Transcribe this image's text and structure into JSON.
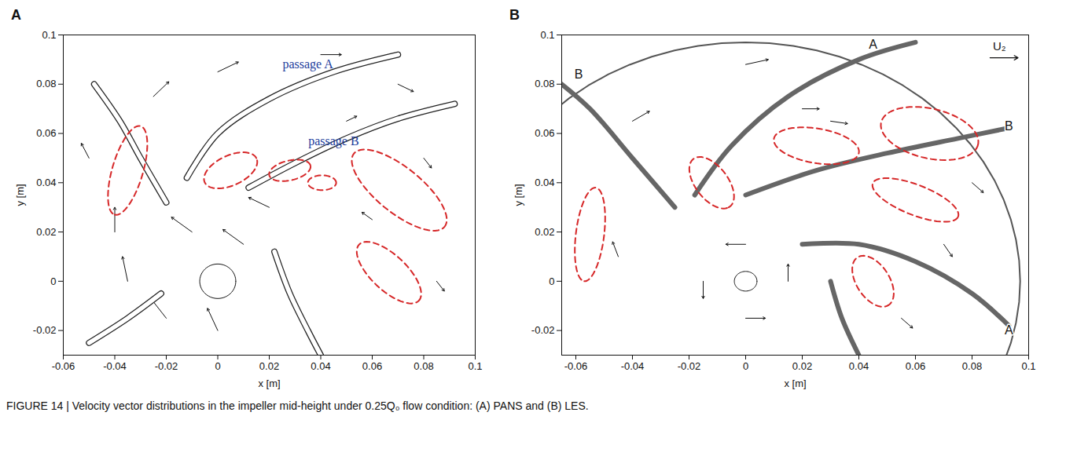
{
  "chart_data": [
    {
      "type": "vector",
      "panel": "A",
      "xlabel": "x [m]",
      "ylabel": "y [m]",
      "xlim": [
        -0.06,
        0.1
      ],
      "ylim": [
        -0.03,
        0.1
      ],
      "xticks": [
        -0.06,
        -0.04,
        -0.02,
        0,
        0.02,
        0.04,
        0.06,
        0.08,
        0.1
      ],
      "yticks": [
        -0.02,
        0,
        0.02,
        0.04,
        0.06,
        0.08,
        0.1
      ],
      "hub_radius": 0.007,
      "blades": [
        [
          [
            -0.02,
            0.032
          ],
          [
            -0.03,
            0.05
          ],
          [
            -0.038,
            0.065
          ],
          [
            -0.048,
            0.08
          ]
        ],
        [
          [
            -0.012,
            0.042
          ],
          [
            0.0,
            0.06
          ],
          [
            0.02,
            0.074
          ],
          [
            0.045,
            0.085
          ],
          [
            0.07,
            0.092
          ]
        ],
        [
          [
            0.012,
            0.038
          ],
          [
            0.03,
            0.048
          ],
          [
            0.05,
            0.058
          ],
          [
            0.07,
            0.066
          ],
          [
            0.092,
            0.072
          ]
        ],
        [
          [
            0.022,
            0.012
          ],
          [
            0.028,
            -0.005
          ],
          [
            0.035,
            -0.02
          ],
          [
            0.04,
            -0.03
          ]
        ],
        [
          [
            -0.022,
            -0.005
          ],
          [
            -0.035,
            -0.015
          ],
          [
            -0.05,
            -0.025
          ]
        ]
      ],
      "regions": [
        {
          "x1": -0.03,
          "y1": 0.063,
          "x2": -0.04,
          "y2": 0.027,
          "half_width": 0.006
        },
        {
          "x1": -0.005,
          "y1": 0.04,
          "x2": 0.015,
          "y2": 0.05,
          "half_width": 0.006
        },
        {
          "x1": 0.02,
          "y1": 0.043,
          "x2": 0.036,
          "y2": 0.047,
          "half_width": 0.004
        },
        {
          "x1": 0.035,
          "y1": 0.04,
          "x2": 0.046,
          "y2": 0.04,
          "half_width": 0.003
        },
        {
          "x1": 0.053,
          "y1": 0.052,
          "x2": 0.088,
          "y2": 0.022,
          "half_width": 0.009
        },
        {
          "x1": 0.055,
          "y1": 0.015,
          "x2": 0.078,
          "y2": -0.008,
          "half_width": 0.007
        }
      ],
      "vectors": [
        [
          -0.02,
          -0.015,
          -0.006,
          0.008
        ],
        [
          0.0,
          -0.02,
          -0.004,
          0.009
        ],
        [
          -0.035,
          0.0,
          -0.002,
          0.01
        ],
        [
          -0.04,
          0.02,
          0.0,
          0.01
        ],
        [
          0.01,
          0.015,
          -0.008,
          0.006
        ],
        [
          -0.01,
          0.02,
          -0.008,
          0.006
        ],
        [
          0.02,
          0.03,
          -0.008,
          0.004
        ],
        [
          -0.025,
          0.075,
          0.006,
          0.006
        ],
        [
          0.0,
          0.085,
          0.008,
          0.004
        ],
        [
          0.04,
          0.092,
          0.008,
          0.0
        ],
        [
          0.07,
          0.08,
          0.006,
          -0.003
        ],
        [
          0.08,
          0.05,
          0.003,
          -0.004
        ],
        [
          0.06,
          0.025,
          -0.004,
          0.003
        ],
        [
          0.085,
          0.0,
          0.003,
          -0.004
        ],
        [
          -0.05,
          0.05,
          -0.003,
          0.006
        ],
        [
          0.05,
          0.065,
          0.004,
          0.002
        ]
      ],
      "annotations": [
        {
          "text": "passage A",
          "x": 0.035,
          "y": 0.088
        },
        {
          "text": "passage B",
          "x": 0.045,
          "y": 0.057
        }
      ]
    },
    {
      "type": "vector",
      "panel": "B",
      "xlabel": "x [m]",
      "ylabel": "y [m]",
      "xlim": [
        -0.065,
        0.1
      ],
      "ylim": [
        -0.03,
        0.1
      ],
      "xticks": [
        -0.06,
        -0.04,
        -0.02,
        0,
        0.02,
        0.04,
        0.06,
        0.08,
        0.1
      ],
      "yticks": [
        -0.02,
        0,
        0.02,
        0.04,
        0.06,
        0.08,
        0.1
      ],
      "hub_radius": 0.004,
      "rim_radius": 0.097,
      "blades": [
        [
          [
            -0.025,
            0.03
          ],
          [
            -0.04,
            0.05
          ],
          [
            -0.055,
            0.07
          ],
          [
            -0.065,
            0.08
          ]
        ],
        [
          [
            -0.018,
            0.035
          ],
          [
            -0.005,
            0.055
          ],
          [
            0.015,
            0.075
          ],
          [
            0.04,
            0.09
          ],
          [
            0.06,
            0.097
          ]
        ],
        [
          [
            0.0,
            0.035
          ],
          [
            0.025,
            0.045
          ],
          [
            0.05,
            0.052
          ],
          [
            0.075,
            0.058
          ],
          [
            0.092,
            0.062
          ]
        ],
        [
          [
            0.02,
            0.015
          ],
          [
            0.04,
            0.015
          ],
          [
            0.06,
            0.008
          ],
          [
            0.08,
            -0.005
          ],
          [
            0.093,
            -0.018
          ]
        ],
        [
          [
            0.03,
            0.0
          ],
          [
            0.034,
            -0.015
          ],
          [
            0.04,
            -0.03
          ]
        ]
      ],
      "regions": [
        {
          "x1": -0.053,
          "y1": 0.038,
          "x2": -0.057,
          "y2": 0.0,
          "half_width": 0.005
        },
        {
          "x1": -0.018,
          "y1": 0.05,
          "x2": -0.006,
          "y2": 0.03,
          "half_width": 0.006
        },
        {
          "x1": 0.01,
          "y1": 0.058,
          "x2": 0.04,
          "y2": 0.052,
          "half_width": 0.007
        },
        {
          "x1": 0.048,
          "y1": 0.065,
          "x2": 0.082,
          "y2": 0.055,
          "half_width": 0.01
        },
        {
          "x1": 0.045,
          "y1": 0.04,
          "x2": 0.075,
          "y2": 0.026,
          "half_width": 0.006
        },
        {
          "x1": 0.04,
          "y1": 0.01,
          "x2": 0.05,
          "y2": -0.01,
          "half_width": 0.006
        }
      ],
      "vectors": [
        [
          0.0,
          0.015,
          -0.007,
          0.0
        ],
        [
          0.0,
          -0.015,
          0.007,
          0.0
        ],
        [
          0.015,
          0.0,
          0.0,
          0.007
        ],
        [
          -0.015,
          0.0,
          0.0,
          -0.007
        ],
        [
          -0.04,
          0.065,
          0.006,
          0.004
        ],
        [
          0.0,
          0.088,
          0.008,
          0.002
        ],
        [
          0.03,
          0.065,
          0.006,
          -0.001
        ],
        [
          0.08,
          0.04,
          0.004,
          -0.004
        ],
        [
          0.07,
          0.015,
          0.003,
          -0.005
        ],
        [
          -0.045,
          0.01,
          -0.002,
          0.006
        ],
        [
          0.055,
          -0.015,
          0.004,
          -0.004
        ],
        [
          0.02,
          0.07,
          0.006,
          0.0
        ]
      ],
      "annotations": [
        {
          "text": "A",
          "x": 0.045,
          "y": 0.096
        },
        {
          "text": "B",
          "x": 0.093,
          "y": 0.063
        },
        {
          "text": "A",
          "x": 0.093,
          "y": -0.02
        },
        {
          "text": "B",
          "x": -0.059,
          "y": 0.084
        },
        {
          "text": "U₂",
          "x": 0.088,
          "y": 0.092,
          "arrow": true
        }
      ]
    }
  ],
  "caption": "FIGURE 14 | Velocity vector distributions in the impeller mid-height under 0.25Q₀ flow condition: (A) PANS and (B) LES."
}
